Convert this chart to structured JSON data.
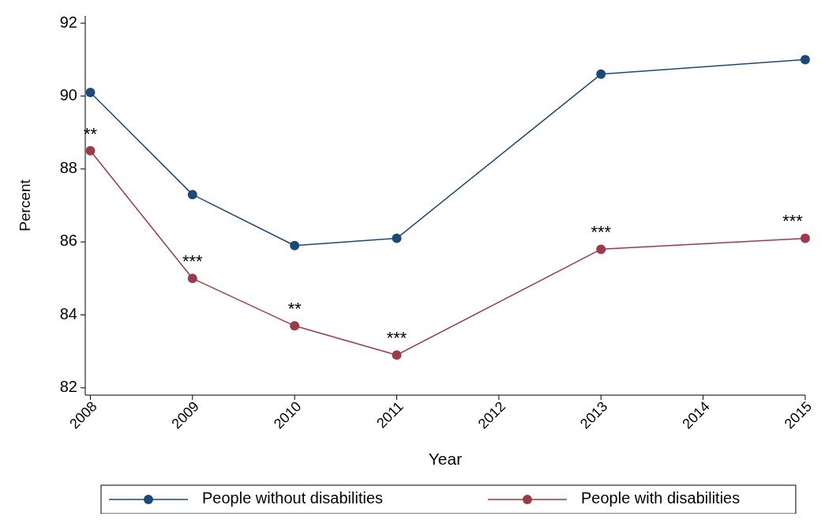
{
  "chart_data": {
    "type": "line",
    "xlabel": "Year",
    "ylabel": "Percent",
    "x": [
      2008,
      2009,
      2010,
      2011,
      2013,
      2015
    ],
    "series": [
      {
        "name": "People without disabilities",
        "color": "#1a4a7a",
        "values": [
          90.1,
          87.3,
          85.9,
          86.1,
          90.6,
          91.0
        ]
      },
      {
        "name": "People with disabilities",
        "color": "#9e3a48",
        "values": [
          88.5,
          85.0,
          83.7,
          82.9,
          85.8,
          86.1
        ]
      }
    ],
    "xlim": [
      2007.95,
      2015
    ],
    "xticks": [
      2008,
      2009,
      2010,
      2011,
      2012,
      2013,
      2014,
      2015
    ],
    "ylim": [
      81.8,
      92.2
    ],
    "yticks": [
      82,
      84,
      86,
      88,
      90,
      92
    ],
    "annotations": [
      {
        "text": "**",
        "x": 2008,
        "y": 88.5
      },
      {
        "text": "***",
        "x": 2009,
        "y": 85.0
      },
      {
        "text": "**",
        "x": 2010,
        "y": 83.7
      },
      {
        "text": "***",
        "x": 2011,
        "y": 82.9
      },
      {
        "text": "***",
        "x": 2013,
        "y": 85.8
      },
      {
        "text": "***",
        "x": 2015,
        "y": 86.1
      }
    ],
    "marker": "circle",
    "line_style": "solid",
    "grid": false,
    "legend": "bottom"
  }
}
